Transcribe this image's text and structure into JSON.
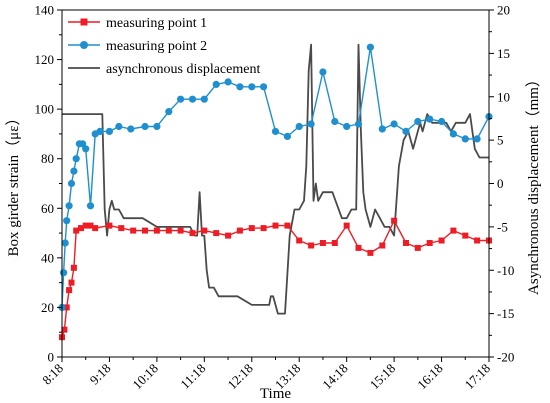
{
  "chart_data": {
    "type": "line",
    "xlabel": "Time",
    "ylabel_left": "Box girder strain（με）",
    "ylabel_right": "Asynchronous displacement（mm）",
    "x_ticks": [
      "8:18",
      "9:18",
      "10:18",
      "11:18",
      "12:18",
      "13:18",
      "14:18",
      "15:18",
      "16:18",
      "17:18"
    ],
    "x_range": [
      "8:18",
      "17:18"
    ],
    "y_left_range": [
      0,
      140
    ],
    "y_left_ticks": [
      0,
      20,
      40,
      60,
      80,
      100,
      120,
      140
    ],
    "y_right_range": [
      -20,
      20
    ],
    "y_right_ticks": [
      -20,
      -15,
      -10,
      -5,
      0,
      5,
      10,
      15,
      20
    ],
    "grid": false,
    "legend_position": "top-left",
    "colors": {
      "series1": "#ee1c25",
      "series2": "#1f8fcf",
      "series3": "#4a4a4a"
    },
    "series": [
      {
        "name": "measuring point 1",
        "axis": "left",
        "marker": "square",
        "x": [
          "8:18",
          "8:21",
          "8:24",
          "8:27",
          "8:30",
          "8:33",
          "8:36",
          "8:42",
          "8:48",
          "8:54",
          "9:00",
          "9:18",
          "9:33",
          "9:48",
          "10:03",
          "10:18",
          "10:33",
          "10:48",
          "11:03",
          "11:18",
          "11:33",
          "11:48",
          "12:03",
          "12:18",
          "12:33",
          "12:48",
          "13:03",
          "13:18",
          "13:33",
          "13:48",
          "14:03",
          "14:18",
          "14:33",
          "14:48",
          "15:03",
          "15:18",
          "15:33",
          "15:48",
          "16:03",
          "16:18",
          "16:33",
          "16:48",
          "17:03",
          "17:18"
        ],
        "values": [
          8,
          11,
          20,
          27,
          30,
          36,
          51,
          52,
          53,
          53,
          52,
          53,
          52,
          51,
          51,
          51,
          51,
          51,
          50,
          51,
          50,
          49,
          51,
          52,
          52,
          53,
          53,
          47,
          45,
          46,
          46,
          53,
          44,
          42,
          45,
          55,
          46,
          44,
          46,
          47,
          51,
          49,
          47,
          47
        ]
      },
      {
        "name": "measuring point 2",
        "axis": "left",
        "marker": "circle",
        "x": [
          "8:18",
          "8:20",
          "8:22",
          "8:24",
          "8:27",
          "8:30",
          "8:33",
          "8:36",
          "8:40",
          "8:44",
          "8:48",
          "8:54",
          "9:00",
          "9:06",
          "9:18",
          "9:30",
          "9:45",
          "10:03",
          "10:18",
          "10:33",
          "10:48",
          "11:03",
          "11:18",
          "11:33",
          "11:48",
          "12:03",
          "12:18",
          "12:33",
          "12:48",
          "13:03",
          "13:18",
          "13:33",
          "13:48",
          "14:03",
          "14:18",
          "14:33",
          "14:48",
          "15:03",
          "15:18",
          "15:33",
          "15:48",
          "16:03",
          "16:18",
          "16:33",
          "16:48",
          "17:03",
          "17:18"
        ],
        "values": [
          20,
          34,
          46,
          55,
          61,
          70,
          75,
          80,
          86,
          86,
          84,
          61,
          90,
          91,
          91,
          93,
          92,
          93,
          93,
          99,
          104,
          104,
          104,
          110,
          111,
          109,
          109,
          109,
          91,
          89,
          93,
          94,
          115,
          95,
          93,
          94,
          125,
          92,
          94,
          91,
          95,
          96,
          95,
          90,
          88,
          88,
          97
        ]
      },
      {
        "name": "asynchronous displacement",
        "axis": "right",
        "marker": "none",
        "x": [
          "8:18",
          "8:24",
          "8:30",
          "8:36",
          "8:42",
          "8:48",
          "9:00",
          "9:06",
          "9:09",
          "9:12",
          "9:15",
          "9:18",
          "9:21",
          "9:24",
          "9:30",
          "9:36",
          "9:48",
          "10:00",
          "10:18",
          "10:30",
          "10:48",
          "11:00",
          "11:06",
          "11:09",
          "11:12",
          "11:15",
          "11:18",
          "11:21",
          "11:24",
          "11:30",
          "11:36",
          "11:48",
          "12:00",
          "12:18",
          "12:30",
          "12:40",
          "12:42",
          "12:45",
          "12:48",
          "12:51",
          "12:54",
          "13:00",
          "13:06",
          "13:12",
          "13:18",
          "13:24",
          "13:27",
          "13:30",
          "13:33",
          "13:36",
          "13:39",
          "13:42",
          "13:48",
          "14:00",
          "14:12",
          "14:18",
          "14:24",
          "14:30",
          "14:33",
          "14:36",
          "14:39",
          "14:42",
          "14:48",
          "14:54",
          "15:00",
          "15:06",
          "15:12",
          "15:18",
          "15:24",
          "15:30",
          "15:36",
          "15:42",
          "15:48",
          "15:51",
          "15:54",
          "15:57",
          "16:00",
          "16:06",
          "16:12",
          "16:18",
          "16:24",
          "16:30",
          "16:36",
          "16:42",
          "16:48",
          "16:54",
          "17:00",
          "17:06",
          "17:12",
          "17:18"
        ],
        "values": [
          8,
          8,
          8,
          8,
          8,
          8,
          8,
          8,
          8,
          -3,
          -6,
          -3,
          -2,
          -3,
          -3,
          -4,
          -4,
          -4,
          -5,
          -5,
          -5,
          -5,
          -6,
          -6,
          -1,
          -6,
          -6,
          -10,
          -12,
          -12,
          -13,
          -13,
          -13,
          -14,
          -14,
          -14,
          -13,
          -13,
          -14,
          -15,
          -15,
          -15,
          -6,
          -3,
          -3,
          -2,
          2,
          13,
          16,
          -2,
          0,
          -2,
          -1,
          -1,
          -4,
          -4,
          -3,
          -3,
          16,
          6,
          -1,
          -3,
          -5,
          -3,
          -4,
          -5,
          -5,
          -6,
          2,
          5,
          6,
          4,
          6,
          7,
          6,
          7,
          8,
          7,
          7,
          7,
          7,
          6,
          7,
          7,
          7,
          8,
          4,
          3,
          3,
          3
        ]
      }
    ]
  }
}
